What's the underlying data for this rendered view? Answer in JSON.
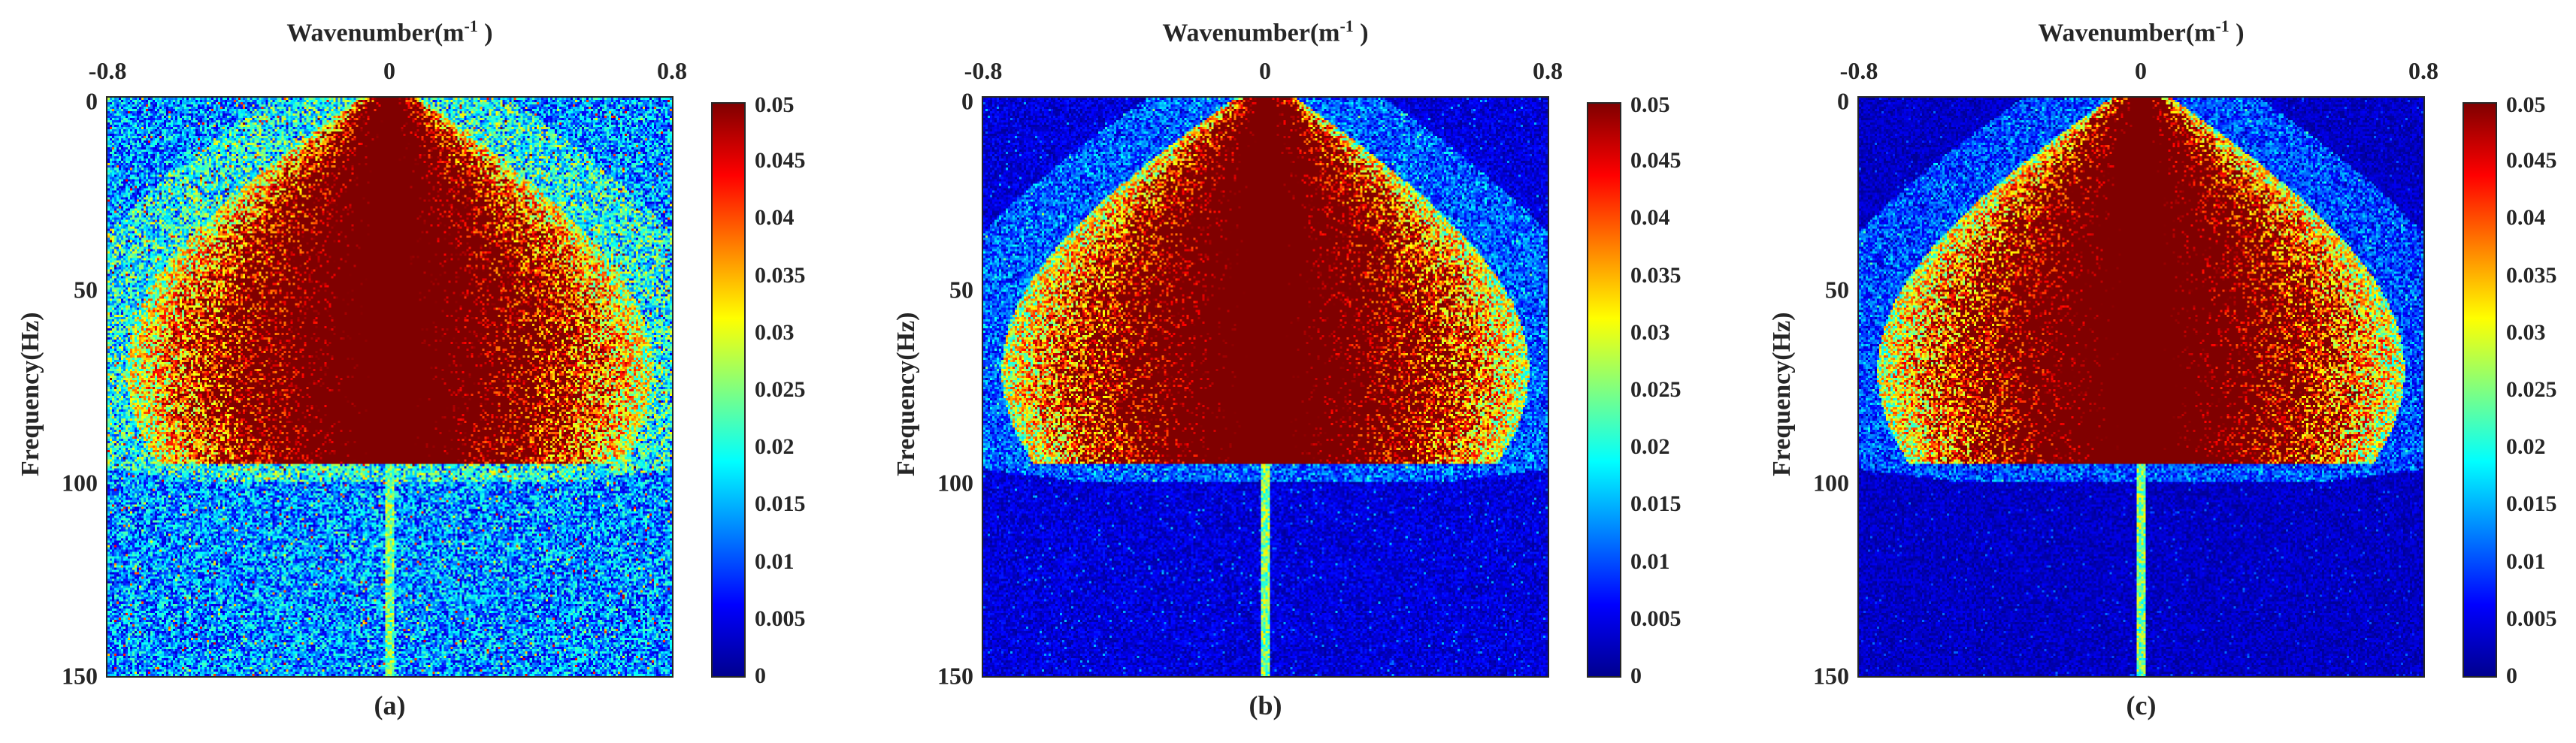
{
  "chart_data": [
    {
      "type": "heatmap",
      "label": "(a)",
      "xlabel_base": "Wavenumber(m",
      "xlabel_sup": "-1",
      "xlabel_end": " )",
      "ylabel": "Frequency(Hz)",
      "x_ticks": [
        "-0.8",
        "0",
        "0.8"
      ],
      "x_range": [
        -0.8,
        0.8
      ],
      "y_ticks": [
        "0",
        "50",
        "100",
        "150"
      ],
      "y_range": [
        0,
        150
      ],
      "colorbar_ticks": [
        "0",
        "0.005",
        "0.01",
        "0.015",
        "0.02",
        "0.025",
        "0.03",
        "0.035",
        "0.04",
        "0.045",
        "0.05"
      ],
      "clim": [
        0,
        0.05
      ],
      "colormap": "jet",
      "background_noise_level": 0.012
    },
    {
      "type": "heatmap",
      "label": "(b)",
      "xlabel_base": "Wavenumber(m",
      "xlabel_sup": "-1",
      "xlabel_end": " )",
      "ylabel": "Frequency(Hz)",
      "x_ticks": [
        "-0.8",
        "0",
        "0.8"
      ],
      "x_range": [
        -0.8,
        0.8
      ],
      "y_ticks": [
        "0",
        "50",
        "100",
        "150"
      ],
      "y_range": [
        0,
        150
      ],
      "colorbar_ticks": [
        "0",
        "0.005",
        "0.01",
        "0.015",
        "0.02",
        "0.025",
        "0.03",
        "0.035",
        "0.04",
        "0.045",
        "0.05"
      ],
      "clim": [
        0,
        0.05
      ],
      "colormap": "jet",
      "background_noise_level": 0.004
    },
    {
      "type": "heatmap",
      "label": "(c)",
      "xlabel_base": "Wavenumber(m",
      "xlabel_sup": "-1",
      "xlabel_end": " )",
      "ylabel": "Frequency(Hz)",
      "x_ticks": [
        "-0.8",
        "0",
        "0.8"
      ],
      "x_range": [
        -0.8,
        0.8
      ],
      "y_ticks": [
        "0",
        "50",
        "100",
        "150"
      ],
      "y_range": [
        0,
        150
      ],
      "colorbar_ticks": [
        "0",
        "0.005",
        "0.01",
        "0.015",
        "0.02",
        "0.025",
        "0.03",
        "0.035",
        "0.04",
        "0.045",
        "0.05"
      ],
      "clim": [
        0,
        0.05
      ],
      "colormap": "jet",
      "background_noise_level": 0.003
    }
  ]
}
